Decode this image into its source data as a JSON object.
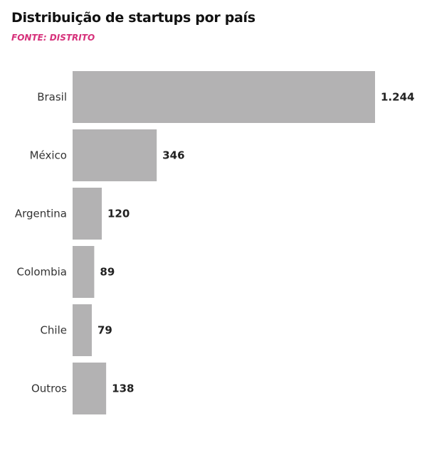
{
  "chart_data": {
    "type": "bar",
    "orientation": "horizontal",
    "title": "Distribuição de startups por país",
    "subtitle": "FONTE: DISTRITO",
    "categories": [
      "Brasil",
      "México",
      "Argentina",
      "Colombia",
      "Chile",
      "Outros"
    ],
    "values": [
      1244,
      346,
      120,
      89,
      79,
      138
    ],
    "data_labels": [
      "1.244",
      "346",
      "120",
      "89",
      "79",
      "138"
    ],
    "xlim": [
      0,
      1244
    ],
    "grid": false,
    "bar_color": "#b3b2b3",
    "subtitle_color": "#d6307a"
  }
}
